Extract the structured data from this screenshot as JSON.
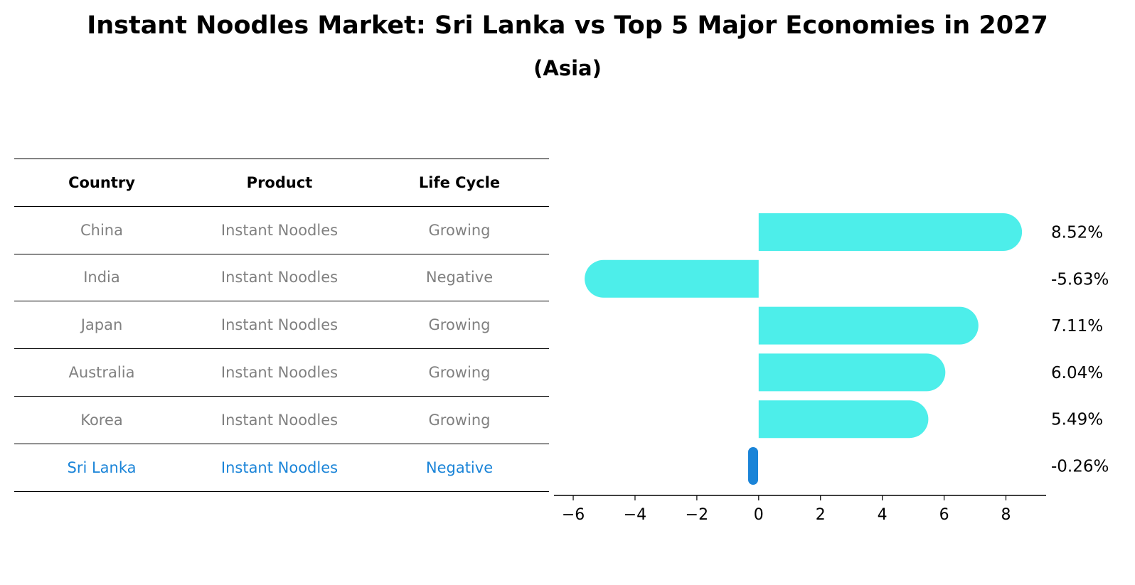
{
  "title": "Instant Noodles Market: Sri Lanka vs Top 5 Major Economies in 2027",
  "subtitle": "(Asia)",
  "table": {
    "headers": [
      "Country",
      "Product",
      "Life Cycle"
    ],
    "rows": [
      {
        "country": "China",
        "product": "Instant Noodles",
        "life_cycle": "Growing"
      },
      {
        "country": "India",
        "product": "Instant Noodles",
        "life_cycle": "Negative"
      },
      {
        "country": "Japan",
        "product": "Instant Noodles",
        "life_cycle": "Growing"
      },
      {
        "country": "Australia",
        "product": "Instant Noodles",
        "life_cycle": "Growing"
      },
      {
        "country": "Korea",
        "product": "Instant Noodles",
        "life_cycle": "Growing"
      },
      {
        "country": "Sri Lanka",
        "product": "Instant Noodles",
        "life_cycle": "Negative"
      }
    ]
  },
  "colors": {
    "bar": "#4deeea",
    "highlight": "#1a84d8",
    "muted_text": "#808080"
  },
  "chart_data": {
    "type": "bar",
    "orientation": "horizontal",
    "categories": [
      "China",
      "India",
      "Japan",
      "Australia",
      "Korea",
      "Sri Lanka"
    ],
    "values": [
      8.52,
      -5.63,
      7.11,
      6.04,
      5.49,
      -0.26
    ],
    "value_labels": [
      "8.52%",
      "-5.63%",
      "7.11%",
      "6.04%",
      "5.49%",
      "-0.26%"
    ],
    "highlight_category": "Sri Lanka",
    "xlim": [
      -6.3,
      9.3
    ],
    "xticks": [
      -6,
      -4,
      -2,
      0,
      2,
      4,
      6,
      8
    ],
    "xtick_labels": [
      "−6",
      "−4",
      "−2",
      "0",
      "2",
      "4",
      "6",
      "8"
    ],
    "xlabel": "",
    "ylabel": "",
    "grid": false
  }
}
